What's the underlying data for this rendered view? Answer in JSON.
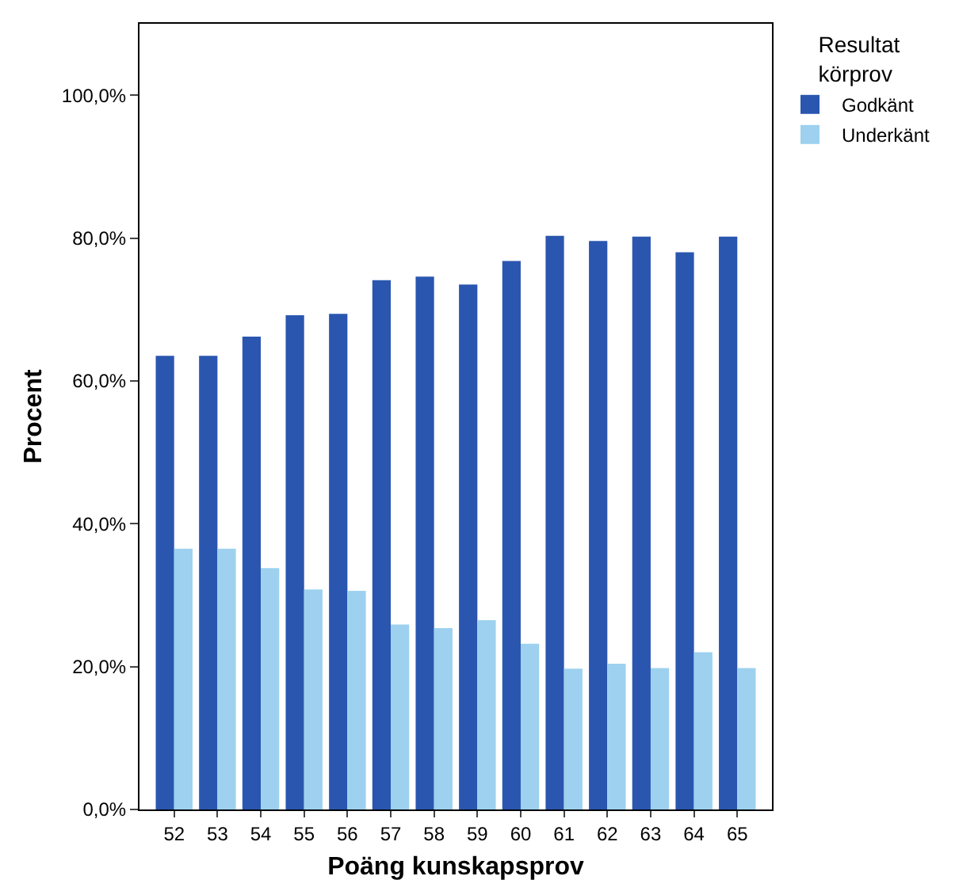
{
  "chart_data": {
    "type": "bar",
    "xlabel": "Poäng kunskapsprov",
    "ylabel": "Procent",
    "legend_title": "Resultat körprov",
    "categories": [
      "52",
      "53",
      "54",
      "55",
      "56",
      "57",
      "58",
      "59",
      "60",
      "61",
      "62",
      "63",
      "64",
      "65"
    ],
    "series": [
      {
        "name": "Godkänt",
        "color": "#2a56b0",
        "values": [
          63.5,
          63.5,
          66.2,
          69.2,
          69.4,
          74.1,
          74.6,
          73.5,
          76.8,
          80.3,
          79.6,
          80.2,
          78.0,
          80.2
        ]
      },
      {
        "name": "Underkänt",
        "color": "#9dd1ef",
        "values": [
          36.5,
          36.5,
          33.8,
          30.8,
          30.6,
          25.9,
          25.4,
          26.5,
          23.2,
          19.7,
          20.4,
          19.8,
          22.0,
          19.8
        ]
      }
    ],
    "ylim": [
      0,
      110
    ],
    "yticks": [
      {
        "value": 0,
        "label": "0,0%"
      },
      {
        "value": 20,
        "label": "20,0%"
      },
      {
        "value": 40,
        "label": "40,0%"
      },
      {
        "value": 60,
        "label": "60,0%"
      },
      {
        "value": 80,
        "label": "80,0%"
      },
      {
        "value": 100,
        "label": "100,0%"
      }
    ],
    "legend": "top right"
  }
}
